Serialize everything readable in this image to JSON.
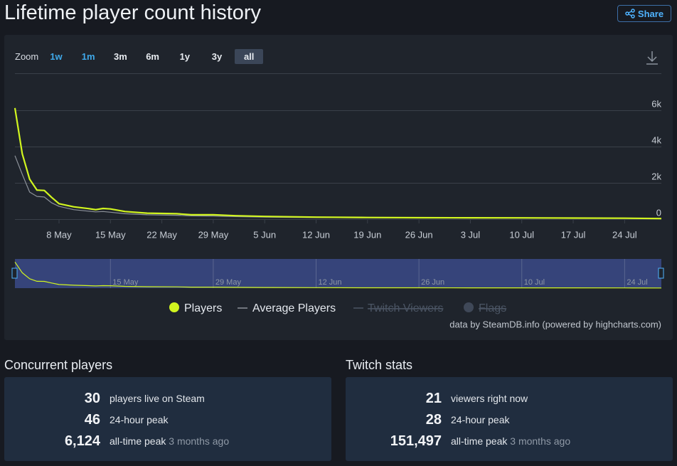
{
  "header": {
    "title": "Lifetime player count history",
    "share": "Share"
  },
  "zoom": {
    "label": "Zoom",
    "options": [
      "1w",
      "1m",
      "3m",
      "6m",
      "1y",
      "3y",
      "all"
    ],
    "selected_index": 6
  },
  "chart_data": {
    "type": "line",
    "x": [
      "2 May",
      "3 May",
      "4 May",
      "5 May",
      "6 May",
      "7 May",
      "8 May",
      "10 May",
      "12 May",
      "13 May",
      "14 May",
      "15 May",
      "17 May",
      "20 May",
      "24 May",
      "26 May",
      "29 May",
      "1 Jun",
      "5 Jun",
      "12 Jun",
      "19 Jun",
      "26 Jun",
      "3 Jul",
      "10 Jul",
      "17 Jul",
      "24 Jul",
      "29 Jul"
    ],
    "series": [
      {
        "name": "Players",
        "color": "#d1f51f",
        "values": [
          6124,
          3600,
          2200,
          1600,
          1580,
          1200,
          850,
          680,
          580,
          520,
          590,
          560,
          420,
          330,
          300,
          240,
          240,
          190,
          150,
          110,
          90,
          80,
          75,
          70,
          60,
          50,
          30
        ]
      },
      {
        "name": "Average Players",
        "color": "#8d929a",
        "values": [
          3500,
          2470,
          1490,
          1250,
          1220,
          900,
          700,
          520,
          440,
          400,
          420,
          380,
          300,
          240,
          210,
          180,
          170,
          140,
          110,
          85,
          70,
          62,
          58,
          52,
          45,
          38,
          28
        ]
      }
    ],
    "hidden_series": [
      "Twitch Viewers",
      "Flags"
    ],
    "xlim": [
      "2 May",
      "29 Jul"
    ],
    "xticks": [
      "8 May",
      "15 May",
      "22 May",
      "29 May",
      "5 Jun",
      "12 Jun",
      "19 Jun",
      "26 Jun",
      "3 Jul",
      "10 Jul",
      "17 Jul",
      "24 Jul"
    ],
    "ylim": [
      0,
      6000
    ],
    "yticks": [
      0,
      {
        "value": 2000,
        "label": "2k"
      },
      {
        "value": 4000,
        "label": "4k"
      },
      {
        "value": 6000,
        "label": "6k"
      }
    ],
    "grid": true,
    "credit": "data by SteamDB.info (powered by highcharts.com)"
  },
  "stats": [
    {
      "title": "Concurrent players",
      "rows": [
        {
          "value": "30",
          "label": "players live on Steam"
        },
        {
          "value": "46",
          "label": "24-hour peak"
        },
        {
          "value": "6,124",
          "label": "all-time peak",
          "note": "3 months ago"
        }
      ]
    },
    {
      "title": "Twitch stats",
      "rows": [
        {
          "value": "21",
          "label": "viewers right now"
        },
        {
          "value": "28",
          "label": "24-hour peak"
        },
        {
          "value": "151,497",
          "label": "all-time peak",
          "note": "3 months ago"
        }
      ]
    }
  ]
}
